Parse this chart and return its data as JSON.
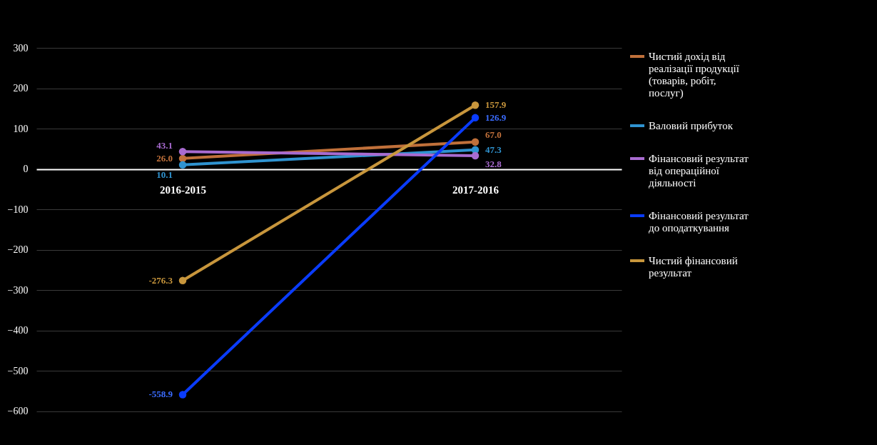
{
  "chart_data": {
    "type": "line",
    "categories": [
      "2016-2015",
      "2017-2016"
    ],
    "series": [
      {
        "name": "Чистий дохід від реалізації продукції (товарів, робіт, послуг)",
        "color": "#c0703a",
        "values": [
          26.0,
          67.0
        ],
        "value_labels": [
          "26.0",
          "67.0"
        ]
      },
      {
        "name": "Валовий прибуток",
        "color": "#2f93d0",
        "values": [
          10.1,
          47.3
        ],
        "value_labels": [
          "10.1",
          "47.3"
        ]
      },
      {
        "name": "Фінансовий результат від операційної діяльності",
        "color": "#a86bd0",
        "values": [
          43.1,
          32.8
        ],
        "value_labels": [
          "43.1",
          "32.8"
        ]
      },
      {
        "name": "Фінансовий результат до оподаткування",
        "color": "#0a3cff",
        "values": [
          -558.9,
          126.9
        ],
        "value_labels": [
          "-558.9",
          "126.9"
        ]
      },
      {
        "name": "Чистий фінансовий результат",
        "color": "#c8963c",
        "values": [
          -276.3,
          157.9
        ],
        "value_labels": [
          "-276.3",
          "157.9"
        ]
      }
    ],
    "ylim": [
      -620,
      300
    ],
    "yticks": [
      -600,
      -500,
      -400,
      -300,
      -200,
      -100,
      0,
      100,
      200,
      300
    ],
    "grid": "y",
    "legend": "right",
    "marker": "circle",
    "line_style": "solid"
  }
}
